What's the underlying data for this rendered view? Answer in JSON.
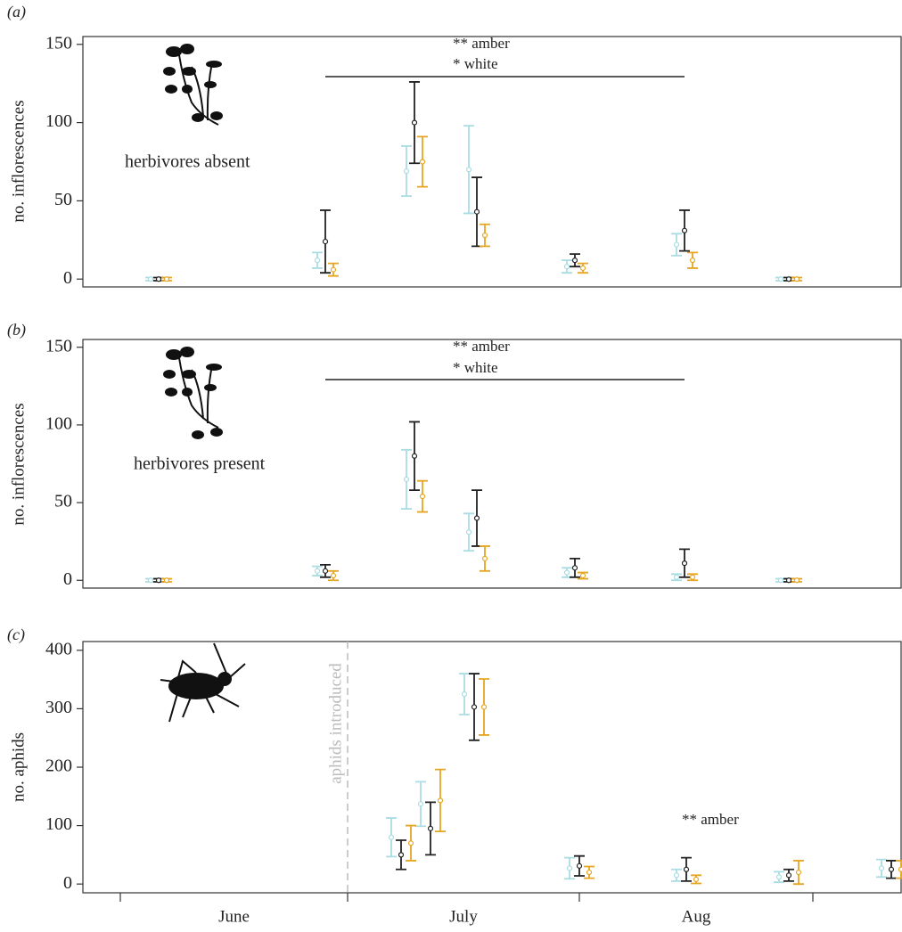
{
  "chart_data": [
    {
      "type": "errorbar",
      "panel_label": "(a)",
      "ylabel": "no. inflorescences",
      "ylim": [
        -5,
        155
      ],
      "yticks": [
        0,
        50,
        100,
        150
      ],
      "categories": [
        null,
        null,
        null,
        null,
        null,
        null,
        null
      ],
      "series": [
        {
          "color": "#a9dce3",
          "values": [
            0,
            12,
            69,
            70,
            8,
            22,
            0
          ],
          "errors": [
            1,
            5,
            16,
            28,
            4,
            7,
            1
          ]
        },
        {
          "color": "#222222",
          "values": [
            0,
            24,
            100,
            43,
            12,
            31,
            0
          ],
          "errors": [
            1,
            20,
            26,
            22,
            4,
            13,
            1
          ]
        },
        {
          "color": "#e6a623",
          "values": [
            0,
            6,
            75,
            28,
            7,
            12,
            0
          ],
          "errors": [
            1,
            4,
            16,
            7,
            3,
            5,
            1
          ]
        }
      ],
      "annotations": [
        "** amber",
        "* white"
      ],
      "inset_label": "herbivores absent"
    },
    {
      "type": "errorbar",
      "panel_label": "(b)",
      "ylabel": "no. inflorescences",
      "ylim": [
        -5,
        155
      ],
      "yticks": [
        0,
        50,
        100,
        150
      ],
      "categories": [
        null,
        null,
        null,
        null,
        null,
        null,
        null
      ],
      "series": [
        {
          "color": "#a9dce3",
          "values": [
            0,
            6,
            65,
            31,
            5,
            2,
            0
          ],
          "errors": [
            1,
            3,
            19,
            12,
            3,
            2,
            1
          ]
        },
        {
          "color": "#222222",
          "values": [
            0,
            6,
            80,
            40,
            8,
            11,
            0
          ],
          "errors": [
            1,
            4,
            22,
            18,
            6,
            9,
            1
          ]
        },
        {
          "color": "#e6a623",
          "values": [
            0,
            3,
            54,
            14,
            3,
            2,
            0
          ],
          "errors": [
            1,
            3,
            10,
            8,
            2,
            2,
            1
          ]
        }
      ],
      "annotations": [
        "** amber",
        "* white"
      ],
      "inset_label": "herbivores present"
    },
    {
      "type": "errorbar",
      "panel_label": "(c)",
      "ylabel": "no. aphids",
      "ylim": [
        -15,
        415
      ],
      "yticks": [
        0,
        100,
        200,
        300,
        400
      ],
      "categories": [
        null,
        null,
        null,
        null,
        null,
        null,
        null
      ],
      "xlabels": [
        "June",
        "July",
        "Aug"
      ],
      "series": [
        {
          "color": "#a9dce3",
          "values": [
            80,
            137,
            325,
            27,
            15,
            12,
            27
          ],
          "errors": [
            33,
            38,
            35,
            18,
            10,
            9,
            15
          ]
        },
        {
          "color": "#222222",
          "values": [
            50,
            95,
            303,
            31,
            25,
            15,
            25
          ],
          "errors": [
            25,
            45,
            57,
            17,
            20,
            10,
            15
          ]
        },
        {
          "color": "#e6a623",
          "values": [
            70,
            143,
            303,
            20,
            8,
            20,
            25
          ],
          "errors": [
            30,
            53,
            48,
            10,
            7,
            20,
            15
          ]
        }
      ],
      "annotations": [
        "** amber"
      ],
      "reference_line_label": "aphids introduced"
    }
  ]
}
